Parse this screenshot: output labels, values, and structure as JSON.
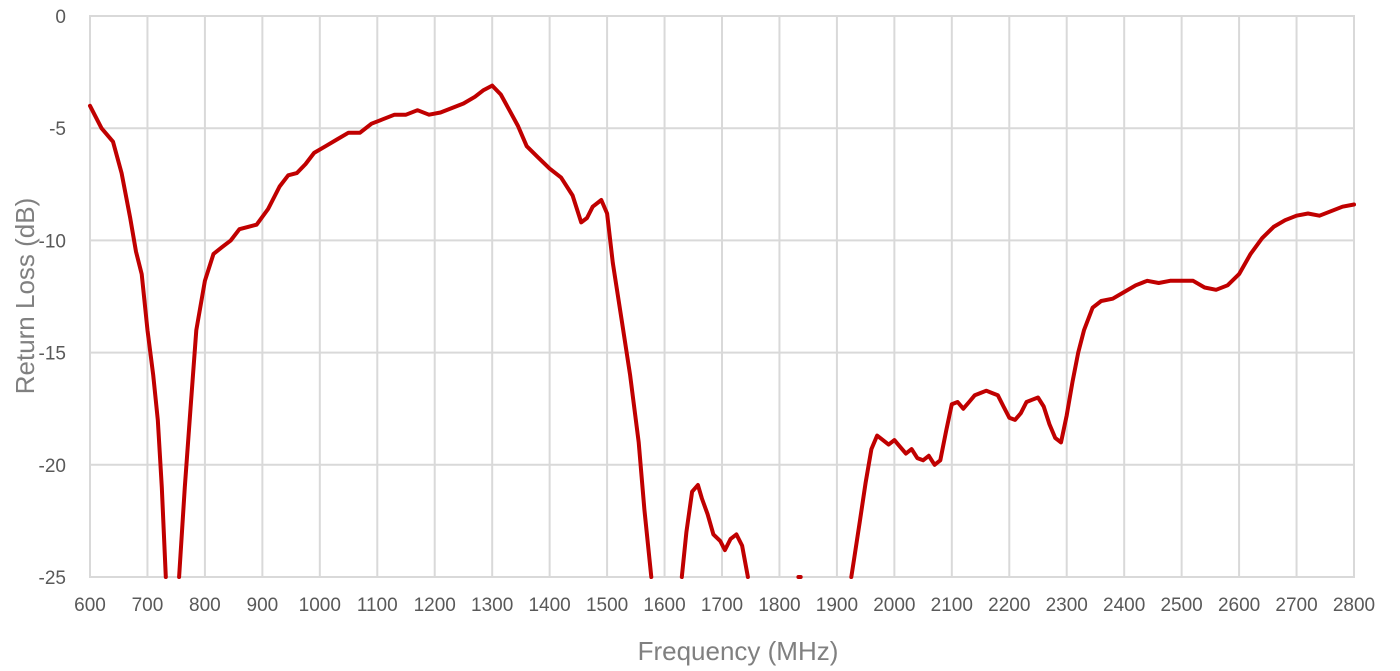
{
  "chart_data": {
    "type": "line",
    "title": "",
    "xlabel": "Frequency (MHz)",
    "ylabel": "Return Loss (dB)",
    "xlim": [
      600,
      2800
    ],
    "ylim": [
      -25,
      0
    ],
    "x_ticks": [
      "600",
      "700",
      "800",
      "900",
      "1000",
      "1100",
      "1200",
      "1300",
      "1400",
      "1500",
      "1600",
      "1700",
      "1800",
      "1900",
      "2000",
      "2100",
      "2200",
      "2300",
      "2400",
      "2500",
      "2600",
      "2700",
      "2800"
    ],
    "y_ticks": [
      "0",
      "-5",
      "-10",
      "-15",
      "-20",
      "-25"
    ],
    "grid": true,
    "legend": "none",
    "series": [
      {
        "color": "#c00000",
        "segments": [
          [
            [
              600,
              -4.0
            ],
            [
              620,
              -5.0
            ],
            [
              640,
              -5.6
            ],
            [
              655,
              -7.0
            ],
            [
              670,
              -9.0
            ],
            [
              680,
              -10.5
            ],
            [
              690,
              -11.5
            ],
            [
              700,
              -14.0
            ],
            [
              710,
              -16.0
            ],
            [
              718,
              -18.0
            ],
            [
              725,
              -21.0
            ],
            [
              732,
              -25.0
            ]
          ],
          [
            [
              755,
              -25.0
            ],
            [
              765,
              -21.0
            ],
            [
              775,
              -17.5
            ],
            [
              785,
              -14.0
            ],
            [
              800,
              -11.8
            ],
            [
              815,
              -10.6
            ],
            [
              830,
              -10.3
            ],
            [
              845,
              -10.0
            ],
            [
              860,
              -9.5
            ],
            [
              875,
              -9.4
            ],
            [
              890,
              -9.3
            ],
            [
              910,
              -8.6
            ],
            [
              930,
              -7.6
            ],
            [
              945,
              -7.1
            ],
            [
              960,
              -7.0
            ],
            [
              975,
              -6.6
            ],
            [
              990,
              -6.1
            ],
            [
              1010,
              -5.8
            ],
            [
              1030,
              -5.5
            ],
            [
              1050,
              -5.2
            ],
            [
              1070,
              -5.2
            ],
            [
              1090,
              -4.8
            ],
            [
              1110,
              -4.6
            ],
            [
              1130,
              -4.4
            ],
            [
              1150,
              -4.4
            ],
            [
              1170,
              -4.2
            ],
            [
              1190,
              -4.4
            ],
            [
              1210,
              -4.3
            ],
            [
              1230,
              -4.1
            ],
            [
              1250,
              -3.9
            ],
            [
              1270,
              -3.6
            ],
            [
              1285,
              -3.3
            ],
            [
              1300,
              -3.1
            ],
            [
              1315,
              -3.5
            ],
            [
              1330,
              -4.2
            ],
            [
              1345,
              -4.9
            ],
            [
              1360,
              -5.8
            ],
            [
              1380,
              -6.3
            ],
            [
              1400,
              -6.8
            ],
            [
              1420,
              -7.2
            ],
            [
              1440,
              -8.0
            ],
            [
              1455,
              -9.2
            ],
            [
              1465,
              -9.0
            ],
            [
              1475,
              -8.5
            ],
            [
              1490,
              -8.2
            ],
            [
              1500,
              -8.8
            ],
            [
              1510,
              -11.0
            ],
            [
              1525,
              -13.5
            ],
            [
              1540,
              -16.0
            ],
            [
              1555,
              -19.0
            ],
            [
              1565,
              -22.0
            ],
            [
              1577,
              -25.0
            ]
          ],
          [
            [
              1630,
              -25.0
            ],
            [
              1638,
              -23.0
            ],
            [
              1648,
              -21.2
            ],
            [
              1658,
              -20.9
            ],
            [
              1665,
              -21.5
            ],
            [
              1675,
              -22.2
            ],
            [
              1685,
              -23.1
            ],
            [
              1697,
              -23.4
            ],
            [
              1705,
              -23.8
            ],
            [
              1715,
              -23.3
            ],
            [
              1725,
              -23.1
            ],
            [
              1735,
              -23.6
            ],
            [
              1745,
              -25.0
            ]
          ],
          [
            [
              1833,
              -25.0
            ],
            [
              1837,
              -25.0
            ]
          ],
          [
            [
              1925,
              -25.0
            ],
            [
              1930,
              -24.2
            ],
            [
              1940,
              -22.5
            ],
            [
              1950,
              -20.8
            ],
            [
              1960,
              -19.3
            ],
            [
              1970,
              -18.7
            ],
            [
              1980,
              -18.9
            ],
            [
              1990,
              -19.1
            ],
            [
              2000,
              -18.9
            ],
            [
              2010,
              -19.2
            ],
            [
              2020,
              -19.5
            ],
            [
              2030,
              -19.3
            ],
            [
              2040,
              -19.7
            ],
            [
              2050,
              -19.8
            ],
            [
              2060,
              -19.6
            ],
            [
              2070,
              -20.0
            ],
            [
              2080,
              -19.8
            ],
            [
              2090,
              -18.5
            ],
            [
              2100,
              -17.3
            ],
            [
              2110,
              -17.2
            ],
            [
              2120,
              -17.5
            ],
            [
              2130,
              -17.2
            ],
            [
              2140,
              -16.9
            ],
            [
              2150,
              -16.8
            ],
            [
              2160,
              -16.7
            ],
            [
              2170,
              -16.8
            ],
            [
              2180,
              -16.9
            ],
            [
              2190,
              -17.4
            ],
            [
              2200,
              -17.9
            ],
            [
              2210,
              -18.0
            ],
            [
              2220,
              -17.7
            ],
            [
              2230,
              -17.2
            ],
            [
              2240,
              -17.1
            ],
            [
              2250,
              -17.0
            ],
            [
              2260,
              -17.4
            ],
            [
              2270,
              -18.2
            ],
            [
              2280,
              -18.8
            ],
            [
              2290,
              -19.0
            ],
            [
              2300,
              -17.8
            ],
            [
              2310,
              -16.3
            ],
            [
              2320,
              -15.0
            ],
            [
              2330,
              -14.0
            ],
            [
              2345,
              -13.0
            ],
            [
              2360,
              -12.7
            ],
            [
              2380,
              -12.6
            ],
            [
              2400,
              -12.3
            ],
            [
              2420,
              -12.0
            ],
            [
              2440,
              -11.8
            ],
            [
              2460,
              -11.9
            ],
            [
              2480,
              -11.8
            ],
            [
              2500,
              -11.8
            ],
            [
              2520,
              -11.8
            ],
            [
              2540,
              -12.1
            ],
            [
              2560,
              -12.2
            ],
            [
              2580,
              -12.0
            ],
            [
              2600,
              -11.5
            ],
            [
              2620,
              -10.6
            ],
            [
              2640,
              -9.9
            ],
            [
              2660,
              -9.4
            ],
            [
              2680,
              -9.1
            ],
            [
              2700,
              -8.9
            ],
            [
              2720,
              -8.8
            ],
            [
              2740,
              -8.9
            ],
            [
              2760,
              -8.7
            ],
            [
              2780,
              -8.5
            ],
            [
              2800,
              -8.4
            ]
          ]
        ]
      }
    ]
  }
}
